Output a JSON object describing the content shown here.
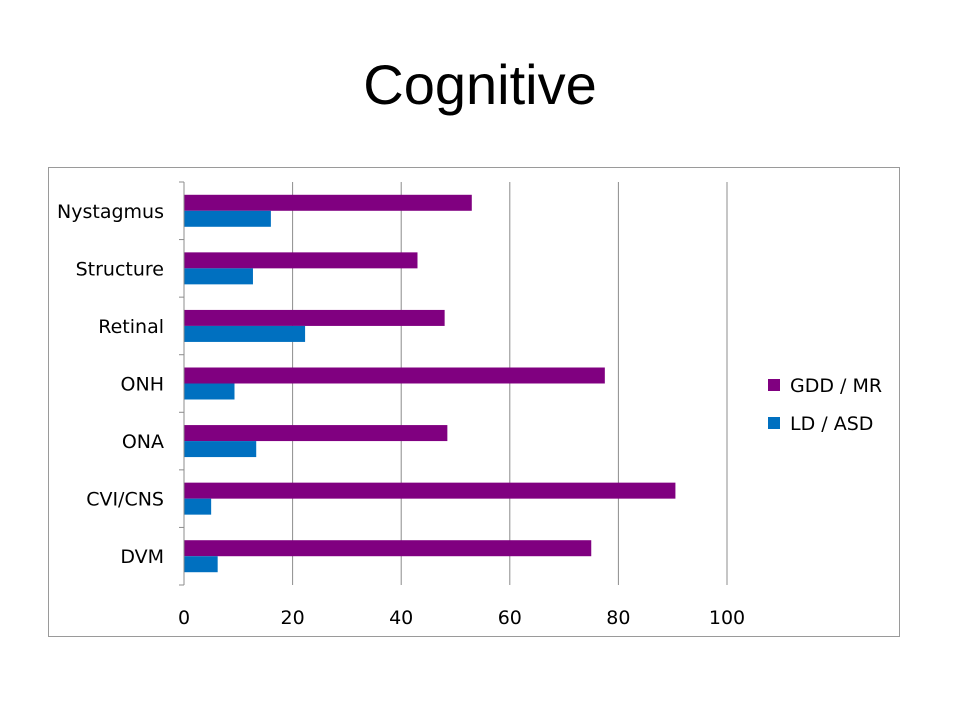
{
  "slide": {
    "title": "Cognitive"
  },
  "chart_data": {
    "type": "bar",
    "orientation": "horizontal",
    "title": "",
    "xlabel": "",
    "ylabel": "",
    "categories": [
      "Nystagmus",
      "Structure",
      "Retinal",
      "ONH",
      "ONA",
      "CVI/CNS",
      "DVM"
    ],
    "series": [
      {
        "name": "GDD / MR",
        "color": "#800080",
        "values": [
          53,
          43,
          48,
          77.5,
          48.5,
          90.5,
          75
        ]
      },
      {
        "name": "LD / ASD",
        "color": "#0070C0",
        "values": [
          16,
          12.7,
          22.3,
          9.3,
          13.3,
          5,
          6.2
        ]
      }
    ],
    "xlim": [
      0,
      100
    ],
    "xticks": [
      "0",
      "20",
      "40",
      "60",
      "80",
      "100"
    ],
    "grid": true,
    "legend_position": "right"
  }
}
